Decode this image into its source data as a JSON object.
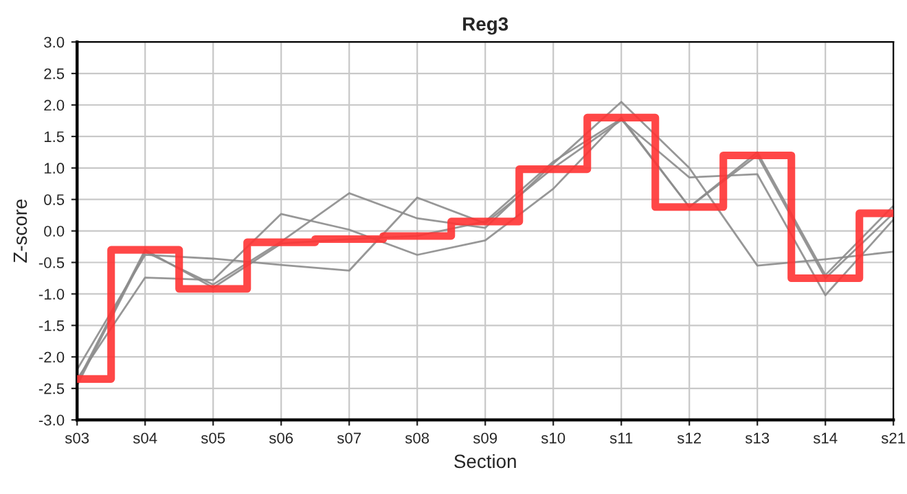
{
  "chart_data": {
    "type": "line",
    "title": "Reg3",
    "xlabel": "Section",
    "ylabel": "Z-score",
    "categories": [
      "s03",
      "s04",
      "s05",
      "s06",
      "s07",
      "s08",
      "s09",
      "s10",
      "s11",
      "s12",
      "s13",
      "s14",
      "s21"
    ],
    "series": [
      {
        "color": "#8c8c8c",
        "values": [
          -2.2,
          -0.38,
          -0.44,
          -0.54,
          -0.63,
          0.53,
          0.12,
          1.0,
          1.76,
          0.85,
          0.9,
          -1.02,
          0.18
        ]
      },
      {
        "color": "#8c8c8c",
        "values": [
          -2.35,
          -0.74,
          -0.78,
          0.27,
          0.02,
          -0.38,
          -0.15,
          0.67,
          1.8,
          0.38,
          1.25,
          -0.7,
          0.4
        ]
      },
      {
        "color": "#8c8c8c",
        "values": [
          -2.45,
          -0.33,
          -0.85,
          -0.17,
          0.6,
          0.2,
          0.05,
          1.07,
          2.05,
          1.0,
          -0.55,
          -0.45,
          -0.33
        ]
      },
      {
        "color": "#8c8c8c",
        "values": [
          -2.4,
          -0.3,
          -0.9,
          -0.2,
          -0.13,
          -0.08,
          0.15,
          1.1,
          1.78,
          0.38,
          1.2,
          -0.75,
          0.28
        ]
      },
      {
        "type": "step",
        "color": "#ff3333",
        "values": [
          -2.35,
          -0.3,
          -0.92,
          -0.18,
          -0.13,
          -0.08,
          0.15,
          0.98,
          1.8,
          0.38,
          1.2,
          -0.75,
          0.28
        ]
      }
    ],
    "ylim": [
      -3,
      3
    ],
    "yticks": [
      {
        "value": -3,
        "label": "-3.0"
      },
      {
        "value": -2.5,
        "label": "-2.5"
      },
      {
        "value": -2,
        "label": "-2.0"
      },
      {
        "value": -1.5,
        "label": "-1.5"
      },
      {
        "value": -1,
        "label": "-1.0"
      },
      {
        "value": -0.5,
        "label": "-0.5"
      },
      {
        "value": 0,
        "label": "0.0"
      },
      {
        "value": 0.5,
        "label": "0.5"
      },
      {
        "value": 1,
        "label": "1.0"
      },
      {
        "value": 1.5,
        "label": "1.5"
      },
      {
        "value": 2,
        "label": "2.0"
      },
      {
        "value": 2.5,
        "label": "2.5"
      },
      {
        "value": 3,
        "label": "3.0"
      }
    ],
    "grid": true
  }
}
